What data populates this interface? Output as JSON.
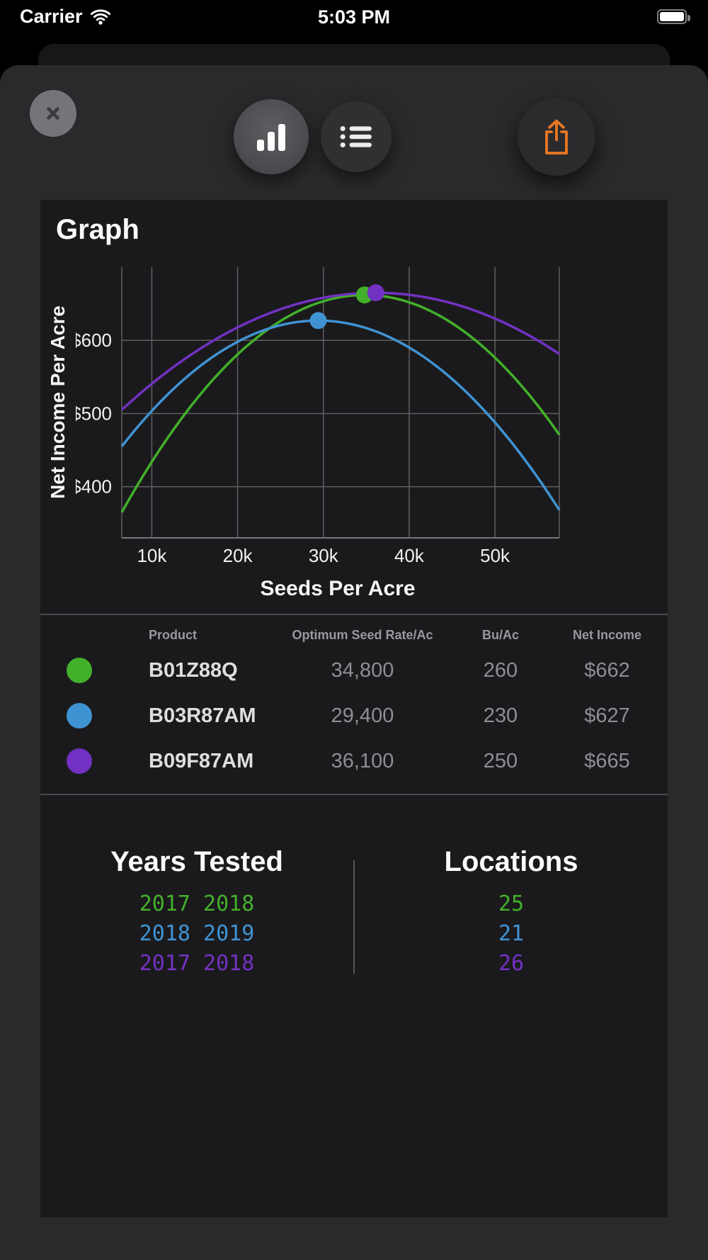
{
  "status_bar": {
    "carrier": "Carrier",
    "time": "5:03 PM"
  },
  "icons": {
    "close": "x-icon",
    "chart_view": "bar-chart-icon",
    "list_view": "bullet-list-icon",
    "share": "share-up-arrow-icon",
    "wifi": "wifi-icon",
    "battery": "battery-full-icon"
  },
  "colors": {
    "green": "#43b02a",
    "blue": "#4093d3",
    "purple": "#7231c2",
    "accent_orange": "#e87722"
  },
  "chart_data": {
    "type": "line",
    "title": "Graph",
    "xlabel": "Seeds Per Acre",
    "ylabel": "Net Income Per Acre",
    "x_domain": [
      6.5,
      57.5
    ],
    "y_domain": [
      330,
      700
    ],
    "grid": true,
    "x_ticks": [
      {
        "value": 10,
        "label": "10k"
      },
      {
        "value": 20,
        "label": "20k"
      },
      {
        "value": 30,
        "label": "30k"
      },
      {
        "value": 40,
        "label": "40k"
      },
      {
        "value": 50,
        "label": "50k"
      }
    ],
    "y_ticks": [
      {
        "value": 400,
        "label": "$400"
      },
      {
        "value": 500,
        "label": "$500"
      },
      {
        "value": 600,
        "label": "$600"
      }
    ],
    "series": [
      {
        "name": "B01Z88Q",
        "color": "#43b02a",
        "curve": {
          "start": {
            "x": 6.5,
            "y": 365
          },
          "peak": {
            "x": 34.8,
            "y": 662
          }
        },
        "marker": {
          "x": 34.8,
          "y": 662
        }
      },
      {
        "name": "B03R87AM",
        "color": "#4093d3",
        "curve": {
          "start": {
            "x": 6.5,
            "y": 455
          },
          "peak": {
            "x": 29.4,
            "y": 627
          }
        },
        "marker": {
          "x": 29.4,
          "y": 627
        }
      },
      {
        "name": "B09F87AM",
        "color": "#7231c2",
        "curve": {
          "start": {
            "x": 6.5,
            "y": 505
          },
          "peak": {
            "x": 36.1,
            "y": 665
          }
        },
        "marker": {
          "x": 36.1,
          "y": 665
        }
      }
    ]
  },
  "table": {
    "headers": [
      "Product",
      "Optimum Seed Rate/Ac",
      "Bu/Ac",
      "Net Income"
    ],
    "rows": [
      {
        "color": "#43b02a",
        "product": "B01Z88Q",
        "seed_rate": "34,800",
        "bu_ac": "260",
        "net_income": "$662"
      },
      {
        "color": "#4093d3",
        "product": "B03R87AM",
        "seed_rate": "29,400",
        "bu_ac": "230",
        "net_income": "$627"
      },
      {
        "color": "#7231c2",
        "product": "B09F87AM",
        "seed_rate": "36,100",
        "bu_ac": "250",
        "net_income": "$665"
      }
    ]
  },
  "footer": {
    "years_title": "Years Tested",
    "locations_title": "Locations",
    "rows": [
      {
        "color": "#43b02a",
        "years": "2017 2018",
        "locations": "25"
      },
      {
        "color": "#4093d3",
        "years": "2018 2019",
        "locations": "21"
      },
      {
        "color": "#7231c2",
        "years": "2017 2018",
        "locations": "26"
      }
    ]
  }
}
